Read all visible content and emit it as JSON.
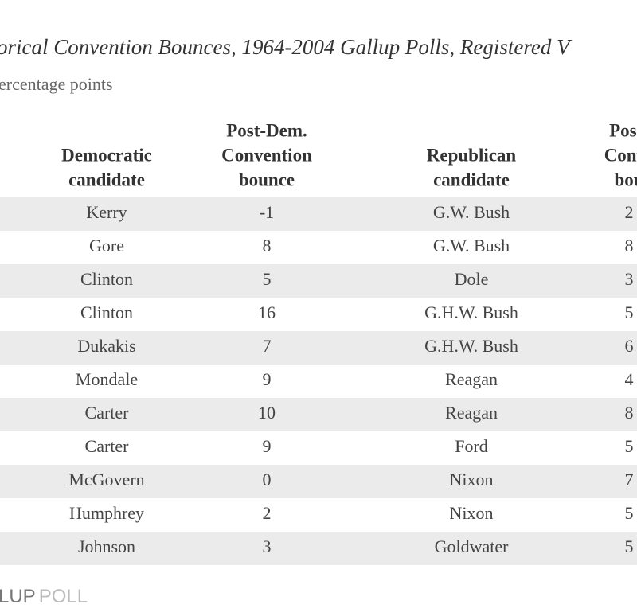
{
  "header": {
    "title": "orical Convention Bounces, 1964-2004 Gallup Polls, Registered V",
    "subtitle": "ercentage points"
  },
  "table": {
    "columns": [
      [
        "Democratic",
        "candidate"
      ],
      [
        "Post-Dem.",
        "Convention",
        "bounce"
      ],
      [
        "Republican",
        "candidate"
      ],
      [
        "Post-",
        "Conve",
        "bou"
      ]
    ],
    "rows": [
      [
        "Kerry",
        "-1",
        "G.W. Bush",
        "2"
      ],
      [
        "Gore",
        "8",
        "G.W. Bush",
        "8"
      ],
      [
        "Clinton",
        "5",
        "Dole",
        "3"
      ],
      [
        "Clinton",
        "16",
        "G.H.W. Bush",
        "5"
      ],
      [
        "Dukakis",
        "7",
        "G.H.W. Bush",
        "6"
      ],
      [
        "Mondale",
        "9",
        "Reagan",
        "4"
      ],
      [
        "Carter",
        "10",
        "Reagan",
        "8"
      ],
      [
        "Carter",
        "9",
        "Ford",
        "5"
      ],
      [
        "McGovern",
        "0",
        "Nixon",
        "7"
      ],
      [
        "Humphrey",
        "2",
        "Nixon",
        "5"
      ],
      [
        "Johnson",
        "3",
        "Goldwater",
        "5"
      ]
    ]
  },
  "footer": {
    "logo_main": "LUP",
    "logo_sub": "POLL"
  }
}
